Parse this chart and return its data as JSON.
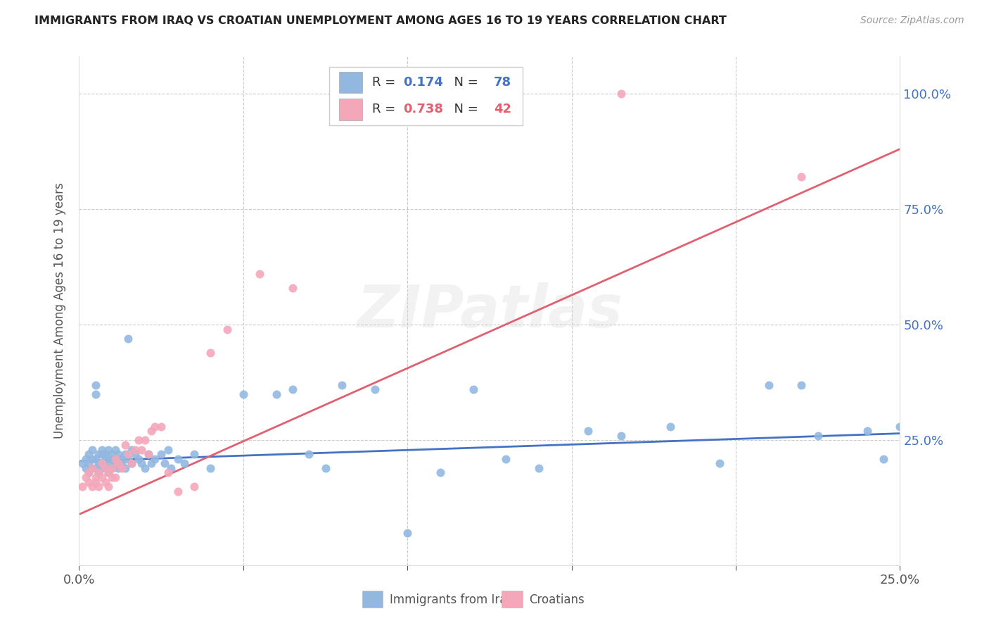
{
  "title": "IMMIGRANTS FROM IRAQ VS CROATIAN UNEMPLOYMENT AMONG AGES 16 TO 19 YEARS CORRELATION CHART",
  "source": "Source: ZipAtlas.com",
  "ylabel": "Unemployment Among Ages 16 to 19 years",
  "xlim": [
    0,
    0.25
  ],
  "ylim": [
    -0.02,
    1.08
  ],
  "blue_color": "#92b8e0",
  "pink_color": "#f4a7b9",
  "blue_line_color": "#4472c4",
  "pink_line_color": "#e06070",
  "legend_r_blue": "0.174",
  "legend_n_blue": "78",
  "legend_r_pink": "0.738",
  "legend_n_pink": "42",
  "watermark": "ZIPatlas",
  "blue_scatter_x": [
    0.001,
    0.002,
    0.002,
    0.003,
    0.003,
    0.003,
    0.004,
    0.004,
    0.004,
    0.005,
    0.005,
    0.005,
    0.005,
    0.006,
    0.006,
    0.006,
    0.007,
    0.007,
    0.007,
    0.007,
    0.008,
    0.008,
    0.008,
    0.009,
    0.009,
    0.009,
    0.01,
    0.01,
    0.01,
    0.011,
    0.011,
    0.012,
    0.012,
    0.013,
    0.013,
    0.014,
    0.014,
    0.015,
    0.015,
    0.016,
    0.016,
    0.017,
    0.018,
    0.019,
    0.02,
    0.021,
    0.022,
    0.023,
    0.025,
    0.026,
    0.027,
    0.028,
    0.03,
    0.032,
    0.035,
    0.04,
    0.05,
    0.06,
    0.065,
    0.07,
    0.075,
    0.08,
    0.09,
    0.1,
    0.11,
    0.12,
    0.13,
    0.14,
    0.155,
    0.165,
    0.18,
    0.195,
    0.21,
    0.22,
    0.225,
    0.24,
    0.245,
    0.25
  ],
  "blue_scatter_y": [
    0.2,
    0.21,
    0.19,
    0.2,
    0.22,
    0.18,
    0.21,
    0.19,
    0.23,
    0.37,
    0.35,
    0.21,
    0.19,
    0.22,
    0.2,
    0.18,
    0.2,
    0.22,
    0.19,
    0.23,
    0.21,
    0.19,
    0.22,
    0.2,
    0.23,
    0.18,
    0.21,
    0.19,
    0.22,
    0.2,
    0.23,
    0.22,
    0.19,
    0.21,
    0.2,
    0.22,
    0.19,
    0.47,
    0.21,
    0.2,
    0.23,
    0.22,
    0.21,
    0.2,
    0.19,
    0.22,
    0.2,
    0.21,
    0.22,
    0.2,
    0.23,
    0.19,
    0.21,
    0.2,
    0.22,
    0.19,
    0.35,
    0.35,
    0.36,
    0.22,
    0.19,
    0.37,
    0.36,
    0.05,
    0.18,
    0.36,
    0.21,
    0.19,
    0.27,
    0.26,
    0.28,
    0.2,
    0.37,
    0.37,
    0.26,
    0.27,
    0.21,
    0.28
  ],
  "pink_scatter_x": [
    0.001,
    0.002,
    0.003,
    0.003,
    0.004,
    0.004,
    0.005,
    0.005,
    0.006,
    0.006,
    0.007,
    0.007,
    0.008,
    0.008,
    0.009,
    0.009,
    0.01,
    0.01,
    0.011,
    0.011,
    0.012,
    0.013,
    0.014,
    0.015,
    0.016,
    0.017,
    0.018,
    0.019,
    0.02,
    0.021,
    0.022,
    0.023,
    0.025,
    0.027,
    0.03,
    0.035,
    0.04,
    0.045,
    0.055,
    0.065,
    0.165,
    0.22
  ],
  "pink_scatter_y": [
    0.15,
    0.17,
    0.16,
    0.18,
    0.15,
    0.19,
    0.17,
    0.16,
    0.18,
    0.15,
    0.2,
    0.17,
    0.19,
    0.16,
    0.18,
    0.15,
    0.19,
    0.17,
    0.21,
    0.17,
    0.2,
    0.19,
    0.24,
    0.22,
    0.2,
    0.23,
    0.25,
    0.23,
    0.25,
    0.22,
    0.27,
    0.28,
    0.28,
    0.18,
    0.14,
    0.15,
    0.44,
    0.49,
    0.61,
    0.58,
    1.0,
    0.82
  ],
  "blue_line_x": [
    0.0,
    0.25
  ],
  "blue_line_y": [
    0.205,
    0.265
  ],
  "pink_line_x": [
    0.0,
    0.25
  ],
  "pink_line_y": [
    0.09,
    0.88
  ]
}
